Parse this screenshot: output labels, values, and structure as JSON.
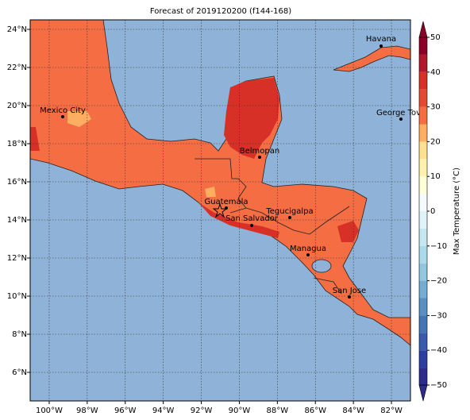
{
  "title": "Forecast of 2019120200 (f144-168)",
  "map": {
    "xlim": [
      -101,
      -81
    ],
    "ylim": [
      4.5,
      24.5
    ],
    "xticks": [
      {
        "value": -100,
        "label": "100°W"
      },
      {
        "value": -98,
        "label": "98°W"
      },
      {
        "value": -96,
        "label": "96°W"
      },
      {
        "value": -94,
        "label": "94°W"
      },
      {
        "value": -92,
        "label": "92°W"
      },
      {
        "value": -90,
        "label": "90°W"
      },
      {
        "value": -88,
        "label": "88°W"
      },
      {
        "value": -86,
        "label": "86°W"
      },
      {
        "value": -84,
        "label": "84°W"
      },
      {
        "value": -82,
        "label": "82°W"
      }
    ],
    "yticks": [
      {
        "value": 6,
        "label": "6°N"
      },
      {
        "value": 8,
        "label": "8°N"
      },
      {
        "value": 10,
        "label": "10°N"
      },
      {
        "value": 12,
        "label": "12°N"
      },
      {
        "value": 14,
        "label": "14°N"
      },
      {
        "value": 16,
        "label": "16°N"
      },
      {
        "value": 18,
        "label": "18°N"
      },
      {
        "value": 20,
        "label": "20°N"
      },
      {
        "value": 22,
        "label": "22°N"
      },
      {
        "value": 24,
        "label": "24°N"
      }
    ],
    "grid": true,
    "cities": [
      "Mexico City",
      "Havana",
      "George Tov",
      "Belmopan",
      "Guatemala",
      "San Salvador",
      "Tegucigalpa",
      "Managua",
      "San Jose"
    ]
  },
  "colorbar": {
    "label": "Max Temperature (°C)",
    "lim": [
      -50,
      50
    ],
    "ticks": [
      {
        "value": -50,
        "label": "−50"
      },
      {
        "value": -40,
        "label": "−40"
      },
      {
        "value": -30,
        "label": "−30"
      },
      {
        "value": -20,
        "label": "−20"
      },
      {
        "value": -10,
        "label": "−10"
      },
      0,
      10,
      20,
      30,
      40,
      50
    ],
    "colors": [
      "#2c2c8a",
      "#2d3f9e",
      "#3a5bab",
      "#4575b4",
      "#5b8fc2",
      "#74add1",
      "#92c5de",
      "#abd9e9",
      "#c6e6f0",
      "#e0f3f8",
      "#f5fbfd",
      "#ffffd9",
      "#fff2b0",
      "#fee090",
      "#fdae61",
      "#f46d43",
      "#e34a33",
      "#d73027",
      "#b2182b",
      "#8b0026"
    ]
  }
}
